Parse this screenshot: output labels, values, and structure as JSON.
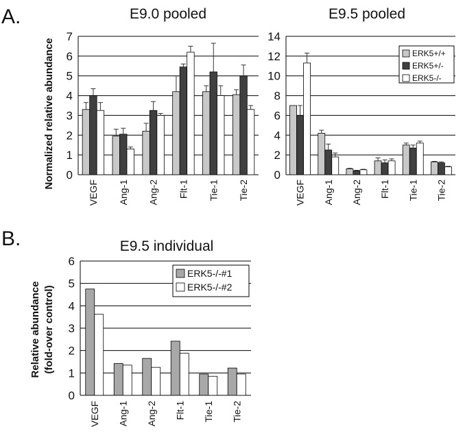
{
  "panels": {
    "a_label": "A.",
    "b_label": "B."
  },
  "shared": {
    "ylabel_a": "Normalized relative abundance",
    "ylabel_b_line1": "Relative abundance",
    "ylabel_b_line2": "(fold-over control)"
  },
  "colors": {
    "wt": "#c8c8c8",
    "het": "#404040",
    "ko": "#ffffff",
    "ko1": "#a8a8a8",
    "ko2": "#ffffff",
    "gridline": "#000000",
    "error_bar": "#333333"
  },
  "chart_data": [
    {
      "type": "bar",
      "title": "E9.0 pooled",
      "ylabel": "Normalized relative abundance",
      "categories": [
        "VEGF",
        "Ang-1",
        "Ang-2",
        "Flt-1",
        "Tie-1",
        "Tie-2"
      ],
      "ylim": [
        0,
        7
      ],
      "yticks": [
        0,
        1,
        2,
        3,
        4,
        5,
        6,
        7
      ],
      "grid": true,
      "legend": "none",
      "series": [
        {
          "name": "ERK5+/+",
          "values": [
            3.3,
            1.95,
            2.2,
            4.2,
            4.2,
            4.05
          ],
          "errors": [
            0.35,
            0.35,
            0.4,
            0.8,
            0.3,
            0.25
          ]
        },
        {
          "name": "ERK5+/-",
          "values": [
            4.0,
            2.05,
            3.25,
            5.45,
            5.2,
            5.0
          ],
          "errors": [
            0.35,
            0.3,
            0.45,
            0.15,
            1.45,
            0.55
          ]
        },
        {
          "name": "ERK5-/-",
          "values": [
            3.25,
            1.3,
            3.0,
            6.2,
            4.0,
            3.3
          ],
          "errors": [
            0.4,
            0.1,
            0.1,
            0.3,
            0.5,
            0.2
          ]
        }
      ]
    },
    {
      "type": "bar",
      "title": "E9.5 pooled",
      "ylabel": "",
      "categories": [
        "VEGF",
        "Ang-1",
        "Ang-2",
        "Flt-1",
        "Tie-1",
        "Tie-2"
      ],
      "ylim": [
        0,
        14
      ],
      "yticks": [
        0,
        2,
        4,
        6,
        8,
        10,
        12,
        14
      ],
      "grid": true,
      "legend": "top-right",
      "series": [
        {
          "name": "ERK5+/+",
          "values": [
            7.0,
            4.2,
            0.6,
            1.4,
            3.0,
            1.3
          ],
          "errors": [
            0.0,
            0.3,
            0.05,
            0.3,
            0.2,
            0.05
          ]
        },
        {
          "name": "ERK5+/-",
          "values": [
            6.0,
            2.5,
            0.4,
            1.2,
            2.7,
            1.2
          ],
          "errors": [
            1.0,
            0.6,
            0.05,
            0.3,
            0.3,
            0.1
          ]
        },
        {
          "name": "ERK5-/-",
          "values": [
            11.3,
            1.8,
            0.5,
            1.4,
            3.2,
            0.8
          ],
          "errors": [
            1.0,
            0.4,
            0.05,
            0.2,
            0.2,
            0.05
          ]
        }
      ]
    },
    {
      "type": "bar",
      "title": "E9.5 individual",
      "ylabel": "Relative abundance (fold-over control)",
      "categories": [
        "VEGF",
        "Ang-1",
        "Ang-2",
        "Flt-1",
        "Tie-1",
        "Tie-2"
      ],
      "ylim": [
        0,
        6
      ],
      "yticks": [
        0,
        1,
        2,
        3,
        4,
        5,
        6
      ],
      "grid": true,
      "legend": "top-right",
      "series": [
        {
          "name": "ERK5-/-#1",
          "values": [
            4.75,
            1.42,
            1.65,
            2.42,
            0.95,
            1.22
          ]
        },
        {
          "name": "ERK5-/-#2",
          "values": [
            3.62,
            1.35,
            1.25,
            1.88,
            0.85,
            0.95
          ]
        }
      ]
    }
  ]
}
